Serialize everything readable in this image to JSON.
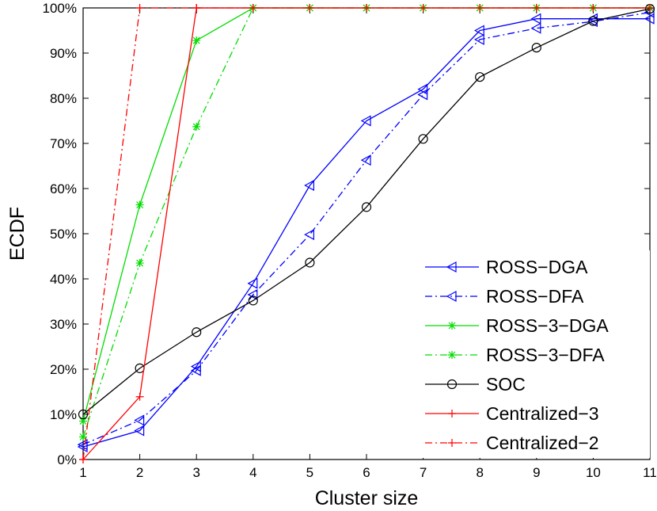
{
  "chart_data": {
    "type": "line",
    "xlabel": "Cluster size",
    "ylabel": "ECDF",
    "xlim": [
      1,
      11
    ],
    "ylim": [
      0,
      100
    ],
    "x_ticks": [
      "1",
      "2",
      "3",
      "4",
      "5",
      "6",
      "7",
      "8",
      "9",
      "10",
      "11"
    ],
    "y_ticks": [
      "0%",
      "10%",
      "20%",
      "30%",
      "40%",
      "50%",
      "60%",
      "70%",
      "80%",
      "90%",
      "100%"
    ],
    "grid": false,
    "legend_position": "bottom-right",
    "x": [
      1,
      2,
      3,
      4,
      5,
      6,
      7,
      8,
      9,
      10,
      11
    ],
    "series": [
      {
        "name": "ROSS−DGA",
        "color": "#0000ff",
        "dash": "solid",
        "marker": "triangle-left",
        "values": [
          2.8,
          6.4,
          20.6,
          39.0,
          60.7,
          75.0,
          82.0,
          95.0,
          97.6,
          97.6,
          97.6
        ]
      },
      {
        "name": "ROSS−DFA",
        "color": "#0000ff",
        "dash": "dashdot",
        "marker": "triangle-left",
        "values": [
          3.3,
          8.7,
          19.7,
          36.5,
          49.8,
          66.3,
          80.8,
          93.0,
          95.5,
          97.0,
          99.0
        ]
      },
      {
        "name": "ROSS−3−DGA",
        "color": "#00dd00",
        "dash": "solid",
        "marker": "star",
        "values": [
          8.5,
          56.4,
          92.8,
          100,
          100,
          100,
          100,
          100,
          100,
          100,
          100
        ]
      },
      {
        "name": "ROSS−3−DFA",
        "color": "#00dd00",
        "dash": "dashdot",
        "marker": "star",
        "values": [
          5.0,
          43.5,
          73.7,
          100,
          100,
          100,
          100,
          100,
          100,
          100,
          100
        ]
      },
      {
        "name": "SOC",
        "color": "#000000",
        "dash": "solid",
        "marker": "circle",
        "values": [
          10.0,
          20.2,
          28.2,
          35.2,
          43.6,
          55.9,
          71.0,
          84.7,
          91.2,
          97.1,
          99.8
        ]
      },
      {
        "name": "Centralized−3",
        "color": "#ff0000",
        "dash": "solid",
        "marker": "plus",
        "values": [
          0,
          13.9,
          100,
          100,
          100,
          100,
          100,
          100,
          100,
          100,
          100
        ]
      },
      {
        "name": "Centralized−2",
        "color": "#ff0000",
        "dash": "dashdot",
        "marker": "plus",
        "values": [
          0,
          100,
          100,
          100,
          100,
          100,
          100,
          100,
          100,
          100,
          100
        ]
      }
    ]
  }
}
